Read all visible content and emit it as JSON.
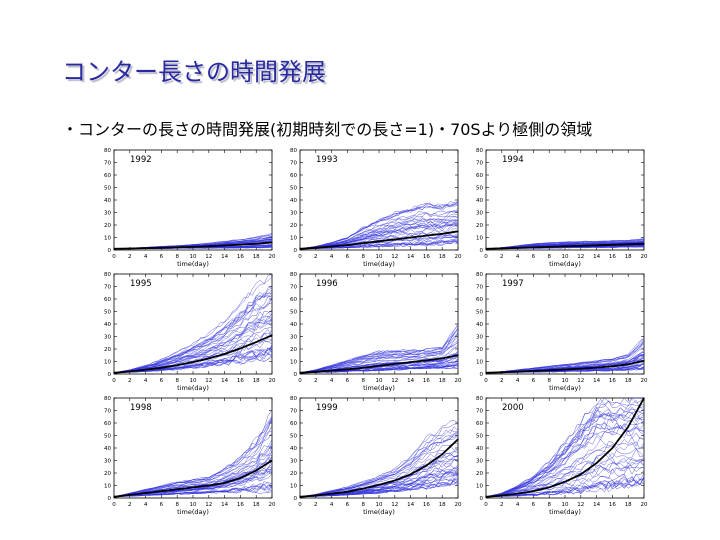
{
  "slide": {
    "title": "コンター長さの時間発展",
    "subtitle": "・コンターの長さの時間発展(初期時刻での長さ=1)・70Sより極側の領域"
  },
  "colors": {
    "title": "#2a2aa0",
    "member_line": "#3333dd",
    "mean_line": "#000000"
  },
  "chart_data": [
    {
      "type": "line",
      "title": "1992",
      "xlabel": "time(day)",
      "ylabel": "",
      "xlim": [
        0,
        20
      ],
      "ylim": [
        0,
        80
      ],
      "xticks": [
        0,
        2,
        4,
        6,
        8,
        10,
        12,
        14,
        16,
        18,
        20
      ],
      "yticks": [
        0,
        10,
        20,
        30,
        40,
        50,
        60,
        70,
        80
      ],
      "x": [
        0,
        2,
        4,
        6,
        8,
        10,
        12,
        14,
        16,
        18,
        20
      ],
      "mean": [
        1,
        1.2,
        1.5,
        1.8,
        2.1,
        2.5,
        3.0,
        3.6,
        4.3,
        5.0,
        6.0
      ],
      "series_low": [
        1,
        1,
        1.1,
        1.2,
        1.3,
        1.4,
        1.5,
        1.6,
        1.7,
        1.8,
        2.0
      ],
      "series_high": [
        1,
        1.5,
        2.2,
        3.0,
        3.6,
        4.5,
        5.5,
        7.0,
        8.5,
        10.5,
        13.0
      ]
    },
    {
      "type": "line",
      "title": "1993",
      "xlabel": "time(day)",
      "ylabel": "",
      "xlim": [
        0,
        20
      ],
      "ylim": [
        0,
        80
      ],
      "xticks": [
        0,
        2,
        4,
        6,
        8,
        10,
        12,
        14,
        16,
        18,
        20
      ],
      "yticks": [
        0,
        10,
        20,
        30,
        40,
        50,
        60,
        70,
        80
      ],
      "x": [
        0,
        2,
        4,
        6,
        8,
        10,
        12,
        14,
        16,
        18,
        20
      ],
      "mean": [
        1,
        1.8,
        2.8,
        4.0,
        5.5,
        7.0,
        8.5,
        10.0,
        11.5,
        13.0,
        15.0
      ],
      "series_low": [
        1,
        1.2,
        1.5,
        2.0,
        2.5,
        3.0,
        3.5,
        4.0,
        4.5,
        5.0,
        6.0
      ],
      "series_high": [
        1,
        3.0,
        6.0,
        10.0,
        18.0,
        24.0,
        30.0,
        34.0,
        37.0,
        36.0,
        40.0
      ]
    },
    {
      "type": "line",
      "title": "1994",
      "xlabel": "time(day)",
      "ylabel": "",
      "xlim": [
        0,
        20
      ],
      "ylim": [
        0,
        80
      ],
      "xticks": [
        0,
        2,
        4,
        6,
        8,
        10,
        12,
        14,
        16,
        18,
        20
      ],
      "yticks": [
        0,
        10,
        20,
        30,
        40,
        50,
        60,
        70,
        80
      ],
      "x": [
        0,
        2,
        4,
        6,
        8,
        10,
        12,
        14,
        16,
        18,
        20
      ],
      "mean": [
        1,
        1.3,
        1.7,
        2.1,
        2.5,
        3.0,
        3.4,
        3.8,
        4.2,
        4.6,
        5.0
      ],
      "series_low": [
        1,
        1.1,
        1.2,
        1.4,
        1.5,
        1.7,
        1.9,
        2.0,
        2.2,
        2.4,
        2.6
      ],
      "series_high": [
        1,
        2.0,
        3.5,
        5.0,
        6.0,
        6.5,
        7.0,
        7.0,
        7.5,
        8.0,
        9.0
      ]
    },
    {
      "type": "line",
      "title": "1995",
      "xlabel": "time(day)",
      "ylabel": "",
      "xlim": [
        0,
        20
      ],
      "ylim": [
        0,
        80
      ],
      "xticks": [
        0,
        2,
        4,
        6,
        8,
        10,
        12,
        14,
        16,
        18,
        20
      ],
      "yticks": [
        0,
        10,
        20,
        30,
        40,
        50,
        60,
        70,
        80
      ],
      "x": [
        0,
        2,
        4,
        6,
        8,
        10,
        12,
        14,
        16,
        18,
        20
      ],
      "mean": [
        1,
        2.0,
        3.5,
        5.0,
        7.0,
        9.5,
        12.5,
        16.0,
        20.5,
        25.5,
        31.0
      ],
      "series_low": [
        1,
        1.4,
        2.0,
        2.8,
        3.8,
        5.0,
        6.5,
        8.0,
        10.0,
        12.0,
        14.0
      ],
      "series_high": [
        1,
        3.5,
        7.0,
        12.0,
        18.0,
        25.0,
        33.0,
        43.0,
        56.0,
        72.0,
        80.0
      ]
    },
    {
      "type": "line",
      "title": "1996",
      "xlabel": "time(day)",
      "ylabel": "",
      "xlim": [
        0,
        20
      ],
      "ylim": [
        0,
        80
      ],
      "xticks": [
        0,
        2,
        4,
        6,
        8,
        10,
        12,
        14,
        16,
        18,
        20
      ],
      "yticks": [
        0,
        10,
        20,
        30,
        40,
        50,
        60,
        70,
        80
      ],
      "x": [
        0,
        2,
        4,
        6,
        8,
        10,
        12,
        14,
        16,
        18,
        20
      ],
      "mean": [
        1,
        1.8,
        2.8,
        3.8,
        5.0,
        6.5,
        8.0,
        9.5,
        11.0,
        12.5,
        15.0
      ],
      "series_low": [
        1,
        1.2,
        1.5,
        2.0,
        2.5,
        3.0,
        3.5,
        4.0,
        4.5,
        5.0,
        5.5
      ],
      "series_high": [
        1,
        3.5,
        7.0,
        11.0,
        15.0,
        18.0,
        19.0,
        19.0,
        20.0,
        22.0,
        40.0
      ]
    },
    {
      "type": "line",
      "title": "1997",
      "xlabel": "time(day)",
      "ylabel": "",
      "xlim": [
        0,
        20
      ],
      "ylim": [
        0,
        80
      ],
      "xticks": [
        0,
        2,
        4,
        6,
        8,
        10,
        12,
        14,
        16,
        18,
        20
      ],
      "yticks": [
        0,
        10,
        20,
        30,
        40,
        50,
        60,
        70,
        80
      ],
      "x": [
        0,
        2,
        4,
        6,
        8,
        10,
        12,
        14,
        16,
        18,
        20
      ],
      "mean": [
        1,
        1.4,
        1.9,
        2.4,
        3.0,
        3.6,
        4.3,
        5.1,
        6.2,
        7.8,
        10.5
      ],
      "series_low": [
        1,
        1.1,
        1.3,
        1.5,
        1.7,
        2.0,
        2.2,
        2.5,
        2.8,
        3.2,
        4.0
      ],
      "series_high": [
        1,
        2.0,
        3.5,
        5.0,
        6.5,
        8.0,
        9.5,
        11.0,
        13.0,
        16.0,
        30.0
      ]
    },
    {
      "type": "line",
      "title": "1998",
      "xlabel": "time(day)",
      "ylabel": "",
      "xlim": [
        0,
        20
      ],
      "ylim": [
        0,
        80
      ],
      "xticks": [
        0,
        2,
        4,
        6,
        8,
        10,
        12,
        14,
        16,
        18,
        20
      ],
      "yticks": [
        0,
        10,
        20,
        30,
        40,
        50,
        60,
        70,
        80
      ],
      "x": [
        0,
        2,
        4,
        6,
        8,
        10,
        12,
        14,
        16,
        18,
        20
      ],
      "mean": [
        1,
        2.5,
        4.0,
        5.5,
        7.0,
        8.5,
        10.0,
        12.0,
        16.0,
        22.0,
        30.0
      ],
      "series_low": [
        1,
        1.5,
        2.0,
        2.5,
        3.0,
        3.5,
        4.0,
        4.5,
        5.0,
        5.5,
        6.0
      ],
      "series_high": [
        1,
        4.0,
        7.0,
        10.0,
        13.0,
        15.0,
        17.0,
        24.0,
        34.0,
        48.0,
        70.0
      ]
    },
    {
      "type": "line",
      "title": "1999",
      "xlabel": "time(day)",
      "ylabel": "",
      "xlim": [
        0,
        20
      ],
      "ylim": [
        0,
        80
      ],
      "xticks": [
        0,
        2,
        4,
        6,
        8,
        10,
        12,
        14,
        16,
        18,
        20
      ],
      "yticks": [
        0,
        10,
        20,
        30,
        40,
        50,
        60,
        70,
        80
      ],
      "x": [
        0,
        2,
        4,
        6,
        8,
        10,
        12,
        14,
        16,
        18,
        20
      ],
      "mean": [
        1,
        2.0,
        3.5,
        5.0,
        7.5,
        10.5,
        14.0,
        19.0,
        26.0,
        35.0,
        47.0
      ],
      "series_low": [
        1,
        1.3,
        1.8,
        2.5,
        3.3,
        4.2,
        5.2,
        6.5,
        8.0,
        10.0,
        12.0
      ],
      "series_high": [
        1,
        3.0,
        6.0,
        9.0,
        13.0,
        18.0,
        24.0,
        34.0,
        48.0,
        58.0,
        62.0
      ]
    },
    {
      "type": "line",
      "title": "2000",
      "xlabel": "time(day)",
      "ylabel": "",
      "xlim": [
        0,
        20
      ],
      "ylim": [
        0,
        80
      ],
      "xticks": [
        0,
        2,
        4,
        6,
        8,
        10,
        12,
        14,
        16,
        18,
        20
      ],
      "yticks": [
        0,
        10,
        20,
        30,
        40,
        50,
        60,
        70,
        80
      ],
      "x": [
        0,
        2,
        4,
        6,
        8,
        10,
        12,
        14,
        16,
        18,
        20
      ],
      "mean": [
        1,
        2.0,
        3.5,
        5.5,
        8.5,
        13.0,
        19.0,
        28.0,
        40.0,
        57.0,
        80.0
      ],
      "series_low": [
        1,
        1.3,
        1.8,
        2.5,
        3.5,
        4.5,
        6.0,
        7.5,
        9.0,
        11.0,
        13.0
      ],
      "series_high": [
        1,
        4.0,
        10.0,
        18.0,
        30.0,
        45.0,
        62.0,
        80.0,
        80.0,
        80.0,
        80.0
      ]
    }
  ]
}
